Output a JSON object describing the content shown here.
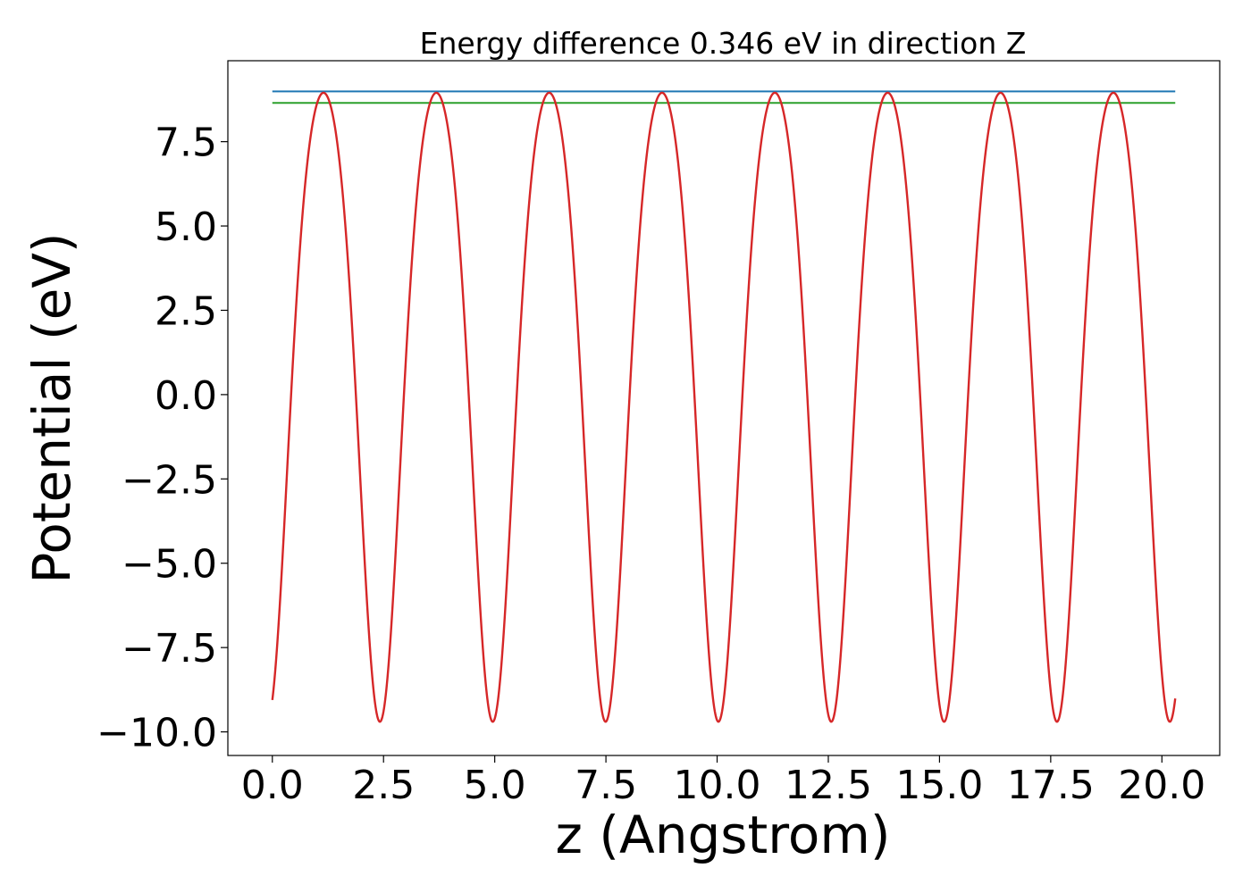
{
  "chart_data": {
    "type": "line",
    "title": "Energy difference 0.346 eV in direction Z",
    "xlabel": "z (Angstrom)",
    "ylabel": "Potential (eV)",
    "xlim": [
      -1.0,
      21.3
    ],
    "ylim": [
      -10.7,
      9.9
    ],
    "xticks": [
      0.0,
      2.5,
      5.0,
      7.5,
      10.0,
      12.5,
      15.0,
      17.5,
      20.0
    ],
    "xtick_labels": [
      "0.0",
      "2.5",
      "5.0",
      "7.5",
      "10.0",
      "12.5",
      "15.0",
      "17.5",
      "20.0"
    ],
    "yticks": [
      7.5,
      5.0,
      2.5,
      0.0,
      -2.5,
      -5.0,
      -7.5,
      -10.0
    ],
    "ytick_labels": [
      "7.5",
      "5.0",
      "2.5",
      "0.0",
      "−2.5",
      "−5.0",
      "−7.5",
      "−10.0"
    ],
    "grid": false,
    "series": [
      {
        "color": "#d62728",
        "x_range": [
          0.0,
          20.3
        ],
        "period": 2.537,
        "maxima_x": [
          1.15,
          3.68,
          6.22,
          8.76,
          11.3,
          13.83,
          16.37,
          18.91
        ],
        "max_value": 8.95,
        "min_value": -9.7
      },
      {
        "color": "#1f77b4",
        "x": [
          0.0,
          20.3
        ],
        "y": [
          8.99,
          8.99
        ]
      },
      {
        "color": "#2ca02c",
        "x": [
          0.0,
          20.3
        ],
        "y": [
          8.65,
          8.65
        ]
      }
    ]
  }
}
